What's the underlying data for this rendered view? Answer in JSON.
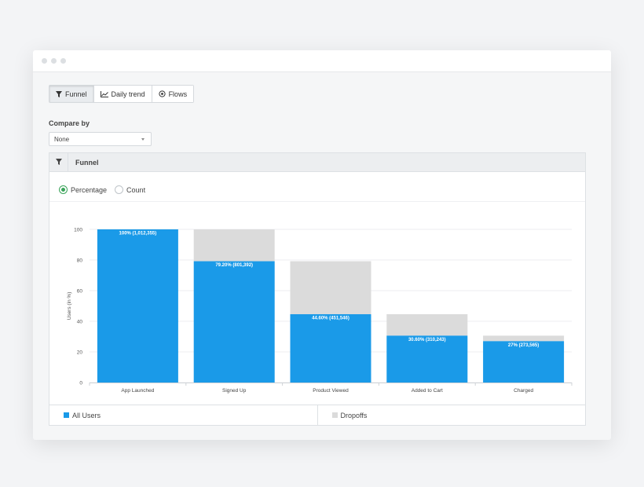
{
  "tabs": [
    {
      "label": "Funnel",
      "icon": "funnel-icon",
      "active": true
    },
    {
      "label": "Daily trend",
      "icon": "line-chart-icon",
      "active": false
    },
    {
      "label": "Flows",
      "icon": "flows-icon",
      "active": false
    }
  ],
  "compare": {
    "label": "Compare by",
    "selected": "None"
  },
  "panel": {
    "title": "Funnel"
  },
  "radios": {
    "percentage": "Percentage",
    "count": "Count",
    "selected": "percentage"
  },
  "colors": {
    "all_users": "#1a9ae8",
    "dropoffs": "#dbdbdb",
    "radio_accent": "#3aa45a"
  },
  "legend": {
    "all_users": "All Users",
    "dropoffs": "Dropoffs"
  },
  "chart_data": {
    "type": "bar",
    "stacked": true,
    "categories": [
      "App Launched",
      "Signed Up",
      "Product Viewed",
      "Added to Cart",
      "Charged"
    ],
    "series": [
      {
        "name": "All Users",
        "values": [
          100,
          79.2,
          44.6,
          30.6,
          27
        ]
      },
      {
        "name": "Dropoffs",
        "values": [
          0,
          20.8,
          34.6,
          14.0,
          3.6
        ]
      }
    ],
    "data_labels": [
      "100% (1,012,355)",
      "79.20% (801,392)",
      "44.60% (451,546)",
      "30.60% (310,243)",
      "27% (273,565)"
    ],
    "ylabel": "Users (in %)",
    "ylim": [
      0,
      100
    ],
    "yticks": [
      0,
      20,
      40,
      60,
      80,
      100
    ],
    "grid": true,
    "legend_position": "bottom"
  }
}
